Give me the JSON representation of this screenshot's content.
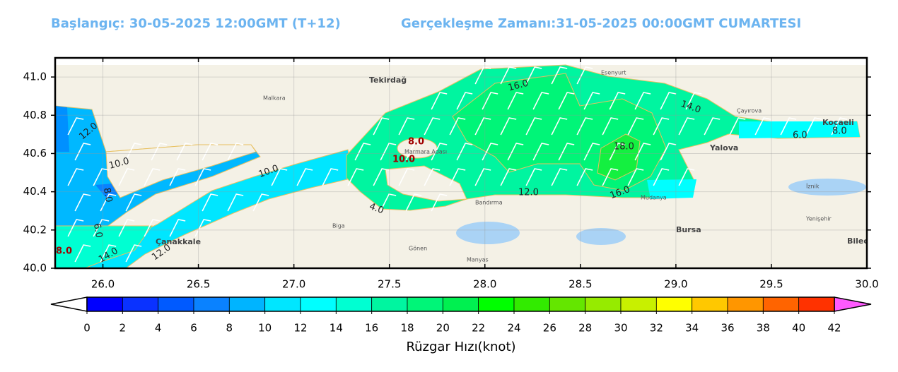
{
  "header": {
    "start": "Başlangıç: 30-05-2025 12:00GMT (T+12)",
    "valid": "Gerçekleşme Zamanı:31-05-2025 00:00GMT CUMARTESI"
  },
  "map": {
    "xlim": [
      25.75,
      30.0
    ],
    "ylim": [
      40.0,
      41.1
    ],
    "xticks": [
      {
        "value": 26,
        "label": "26.0"
      },
      {
        "value": 26.5,
        "label": "26.5"
      },
      {
        "value": 27,
        "label": "27.0"
      },
      {
        "value": 27.5,
        "label": "27.5"
      },
      {
        "value": 28,
        "label": "28.0"
      },
      {
        "value": 28.5,
        "label": "28.5"
      },
      {
        "value": 29,
        "label": "29.0"
      },
      {
        "value": 29.5,
        "label": "29.5"
      },
      {
        "value": 30,
        "label": "30.0"
      }
    ],
    "yticks": [
      {
        "value": 40,
        "label": "40.0"
      },
      {
        "value": 40.2,
        "label": "40.2"
      },
      {
        "value": 40.4,
        "label": "40.4"
      },
      {
        "value": 40.6,
        "label": "40.6"
      },
      {
        "value": 40.8,
        "label": "40.8"
      },
      {
        "value": 41,
        "label": "41.0"
      }
    ],
    "grid": true,
    "places": [
      "Tekirdağ",
      "Marmara Adası",
      "Bandırma",
      "Yalova",
      "Bursa",
      "Çanakkale",
      "Kocaeli",
      "Esenyurt",
      "Gönen",
      "Manyas",
      "Biga",
      "Mudanya",
      "Bilecik",
      "Malkara",
      "Çayırova",
      "İznik",
      "Yenişehir"
    ],
    "contour_labels": [
      "16.0",
      "14.0",
      "12.0",
      "10.0",
      "10.0",
      "18.0",
      "16.0",
      "12.0",
      "8.0",
      "4.0",
      "14.0",
      "12.0",
      "6.0",
      "8.0",
      "8.0",
      "6.0",
      "8.0",
      "10.0"
    ]
  },
  "colorbar": {
    "ticks": [
      0,
      2,
      4,
      6,
      8,
      10,
      12,
      14,
      16,
      18,
      20,
      22,
      24,
      26,
      28,
      30,
      32,
      34,
      36,
      38,
      40,
      42
    ],
    "colors": [
      "#0000ff",
      "#0a32ff",
      "#005aff",
      "#0a82ff",
      "#00b4ff",
      "#00e6ff",
      "#00ffff",
      "#00ffd2",
      "#00f5a0",
      "#00f578",
      "#00f050",
      "#00ff00",
      "#32eb00",
      "#64e600",
      "#96eb00",
      "#c8f000",
      "#ffff00",
      "#ffc800",
      "#ff9600",
      "#ff6400",
      "#ff3200"
    ],
    "under_color": "#ffffff",
    "over_color": "#ff5aff",
    "label": "Rüzgar Hızı(knot)"
  }
}
